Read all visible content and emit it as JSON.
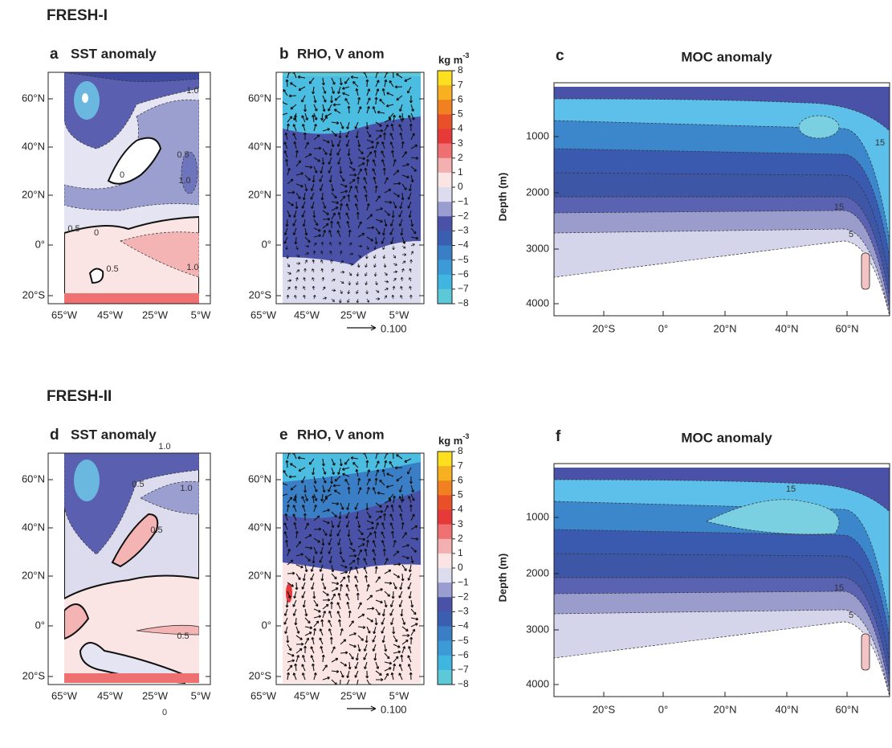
{
  "axes": {
    "lon_ticks": [
      "65°W",
      "45°W",
      "25°W",
      "5°W"
    ],
    "lat_ticks": [
      "60°N",
      "40°N",
      "20°N",
      "0°",
      "20°S"
    ],
    "moc_x_ticks": [
      "20°S",
      "0°",
      "20°N",
      "40°N",
      "60°N"
    ],
    "depth_ticks": [
      "1000",
      "2000",
      "3000",
      "4000"
    ],
    "depth_label": "Depth (m)"
  },
  "colorbar": {
    "unit": "kg m",
    "unit_sup": "-3",
    "ticks": [
      "8",
      "7",
      "6",
      "5",
      "4",
      "3",
      "2",
      "1",
      "0",
      "−1",
      "−2",
      "−3",
      "−4",
      "−5",
      "−6",
      "−7",
      "−8"
    ]
  },
  "rows": [
    {
      "title": "FRESH-I",
      "sst": {
        "letter": "a",
        "title": "SST anomaly",
        "contour_labels": [
          "1.0",
          "0.5",
          "0",
          "1.0",
          "0.5",
          "0",
          "0.5",
          "1.0"
        ]
      },
      "rho": {
        "letter": "b",
        "title": "RHO, V anom",
        "reference_vector": "0.100"
      },
      "moc": {
        "letter": "c",
        "title": "MOC anomaly",
        "contour_labels": [
          "15",
          "15",
          "5"
        ]
      }
    },
    {
      "title": "FRESH-II",
      "sst": {
        "letter": "d",
        "title": "SST anomaly",
        "contour_labels": [
          "1.0",
          "0.5",
          "1.0",
          "0.5",
          "0.5",
          "0"
        ]
      },
      "rho": {
        "letter": "e",
        "title": "RHO, V anom",
        "reference_vector": "0.100"
      },
      "moc": {
        "letter": "f",
        "title": "MOC anomaly",
        "contour_labels": [
          "15",
          "15",
          "5"
        ]
      }
    }
  ]
}
